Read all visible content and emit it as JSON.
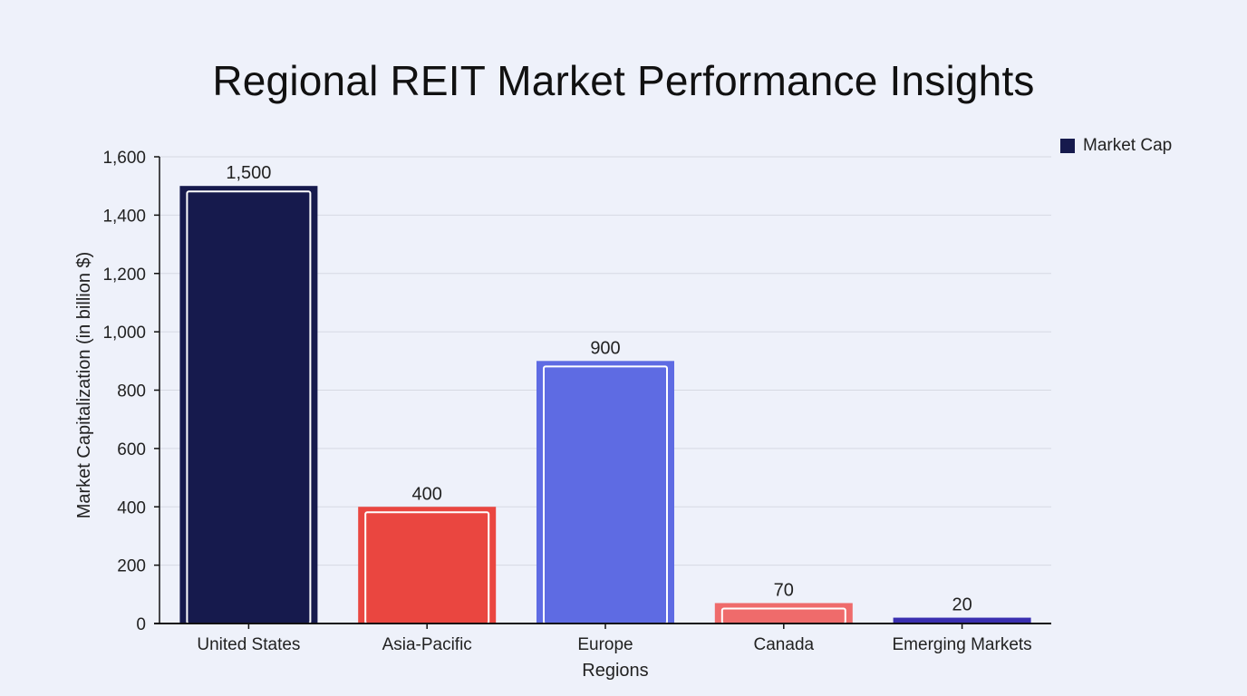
{
  "chart_data": {
    "type": "bar",
    "title": "Regional REIT Market Performance Insights",
    "xlabel": "Regions",
    "ylabel": "Market Capitalization (in billion $)",
    "categories": [
      "United States",
      "Asia-Pacific",
      "Europe",
      "Canada",
      "Emerging Markets"
    ],
    "series": [
      {
        "name": "Market Cap",
        "values": [
          1500,
          400,
          900,
          70,
          20
        ]
      }
    ],
    "data_labels": [
      "1,500",
      "400",
      "900",
      "70",
      "20"
    ],
    "bar_colors": [
      "#161a4d",
      "#ea4640",
      "#5e6be3",
      "#ef6b6b",
      "#3a2fb0"
    ],
    "legend_color": "#161a4d",
    "ylim": [
      0,
      1600
    ],
    "yticks": [
      0,
      200,
      400,
      600,
      800,
      1000,
      1200,
      1400,
      1600
    ],
    "ytick_labels": [
      "0",
      "200",
      "400",
      "600",
      "800",
      "1,000",
      "1,200",
      "1,400",
      "1,600"
    ],
    "grid": true,
    "legend_position": "top-right"
  }
}
